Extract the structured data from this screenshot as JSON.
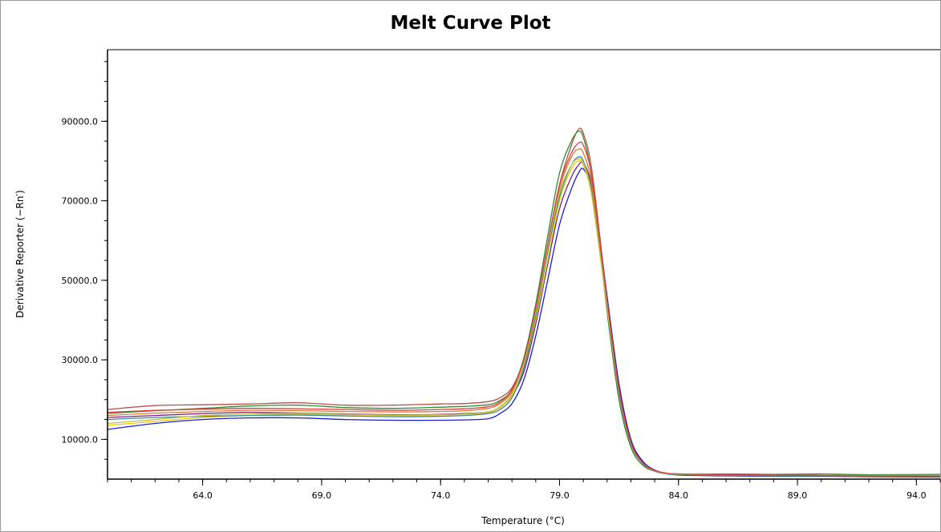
{
  "chart_data": {
    "type": "line",
    "title": "Melt Curve Plot",
    "xlabel": "Temperature (°C)",
    "ylabel": "Derivative Reporter (−Rn′)",
    "xlim": [
      60.0,
      95.0
    ],
    "ylim": [
      0,
      108000
    ],
    "x_ticks": [
      64.0,
      69.0,
      74.0,
      79.0,
      84.0,
      89.0,
      94.0
    ],
    "x_tick_labels": [
      "64.0",
      "69.0",
      "74.0",
      "79.0",
      "84.0",
      "89.0",
      "94.0"
    ],
    "y_ticks": [
      10000.0,
      30000.0,
      50000.0,
      70000.0,
      90000.0
    ],
    "y_tick_labels": [
      "10000.0",
      "30000.0",
      "50000.0",
      "70000.0",
      "90000.0"
    ],
    "grid": false,
    "legend": "none",
    "x": [
      60.0,
      62.0,
      64.0,
      66.0,
      68.0,
      70.0,
      72.0,
      74.0,
      75.0,
      76.0,
      76.5,
      77.0,
      77.5,
      78.0,
      78.5,
      79.0,
      79.5,
      79.8,
      80.0,
      80.3,
      80.6,
      81.0,
      81.5,
      82.0,
      82.5,
      83.0,
      83.5,
      84.0,
      86.0,
      88.0,
      90.0,
      92.0,
      95.0
    ],
    "series": [
      {
        "color": "#b5504a",
        "values": [
          17500,
          18500,
          18700,
          18900,
          19200,
          18600,
          18600,
          18900,
          19000,
          19500,
          20500,
          23000,
          30000,
          42000,
          58000,
          74000,
          84000,
          88000,
          87000,
          80000,
          66000,
          45000,
          22000,
          9000,
          4000,
          2200,
          1500,
          1300,
          1100,
          1100,
          1000,
          900,
          900
        ]
      },
      {
        "color": "#2e8b2e",
        "values": [
          16500,
          17200,
          17800,
          18400,
          18600,
          18000,
          17800,
          18100,
          18300,
          18700,
          19800,
          22500,
          30500,
          44000,
          61000,
          77000,
          85000,
          87500,
          86000,
          78000,
          63000,
          42000,
          20000,
          8000,
          3500,
          2000,
          1400,
          1200,
          1300,
          1200,
          1300,
          1100,
          1200
        ]
      },
      {
        "color": "#1f1fd0",
        "values": [
          12500,
          14000,
          15000,
          15400,
          15400,
          15000,
          14800,
          14800,
          14900,
          15200,
          16500,
          19000,
          25000,
          36000,
          50000,
          64000,
          73000,
          77000,
          78000,
          74000,
          64000,
          46000,
          24000,
          10000,
          4500,
          2300,
          1400,
          1000,
          800,
          700,
          700,
          600,
          600
        ]
      },
      {
        "color": "#7a2080",
        "values": [
          15500,
          16000,
          16500,
          16800,
          16600,
          16400,
          16200,
          16300,
          16500,
          16900,
          18000,
          21000,
          27000,
          39000,
          54000,
          68000,
          76000,
          79000,
          79500,
          75000,
          64000,
          45000,
          23000,
          9500,
          4200,
          2200,
          1400,
          1100,
          900,
          800,
          800,
          600,
          500
        ]
      },
      {
        "color": "#e8c810",
        "values": [
          13500,
          14500,
          15500,
          16000,
          16300,
          16200,
          16000,
          16100,
          16300,
          16700,
          18000,
          21000,
          28000,
          40000,
          55000,
          70000,
          78000,
          80000,
          79000,
          73000,
          61000,
          43000,
          22000,
          9000,
          4000,
          2100,
          1400,
          1200,
          1100,
          1000,
          900,
          800,
          800
        ]
      },
      {
        "color": "#e07830",
        "values": [
          16000,
          16600,
          17000,
          17300,
          17200,
          17000,
          16900,
          17000,
          17200,
          17800,
          19000,
          22000,
          29000,
          42000,
          58000,
          73000,
          81000,
          83000,
          82000,
          76000,
          63000,
          44000,
          22000,
          9000,
          4000,
          2100,
          1400,
          1200,
          1000,
          900,
          900,
          800,
          700
        ]
      },
      {
        "color": "#3a8a9a",
        "values": [
          15000,
          15500,
          15800,
          16000,
          16100,
          15900,
          15700,
          15800,
          16000,
          16500,
          17500,
          20500,
          28000,
          41000,
          57000,
          71000,
          79000,
          81000,
          80000,
          74000,
          62000,
          43000,
          21500,
          8800,
          3900,
          2000,
          1300,
          1100,
          900,
          800,
          800,
          700,
          700
        ]
      },
      {
        "color": "#c0c040",
        "values": [
          14000,
          15000,
          16000,
          16400,
          16500,
          16300,
          16100,
          16200,
          16400,
          16900,
          18200,
          21500,
          29000,
          42000,
          58000,
          72000,
          79000,
          80500,
          79500,
          73500,
          61500,
          43000,
          22000,
          9000,
          4000,
          2100,
          1400,
          1200,
          1100,
          1000,
          1000,
          900,
          900
        ]
      },
      {
        "color": "#d84040",
        "values": [
          16800,
          17300,
          17600,
          17800,
          17700,
          17500,
          17300,
          17500,
          17700,
          18200,
          19400,
          22500,
          30000,
          43000,
          59000,
          74000,
          82000,
          84500,
          84000,
          78000,
          65000,
          45000,
          22500,
          9200,
          4100,
          2200,
          1500,
          1300,
          1100,
          1000,
          900,
          800,
          800
        ]
      }
    ]
  }
}
